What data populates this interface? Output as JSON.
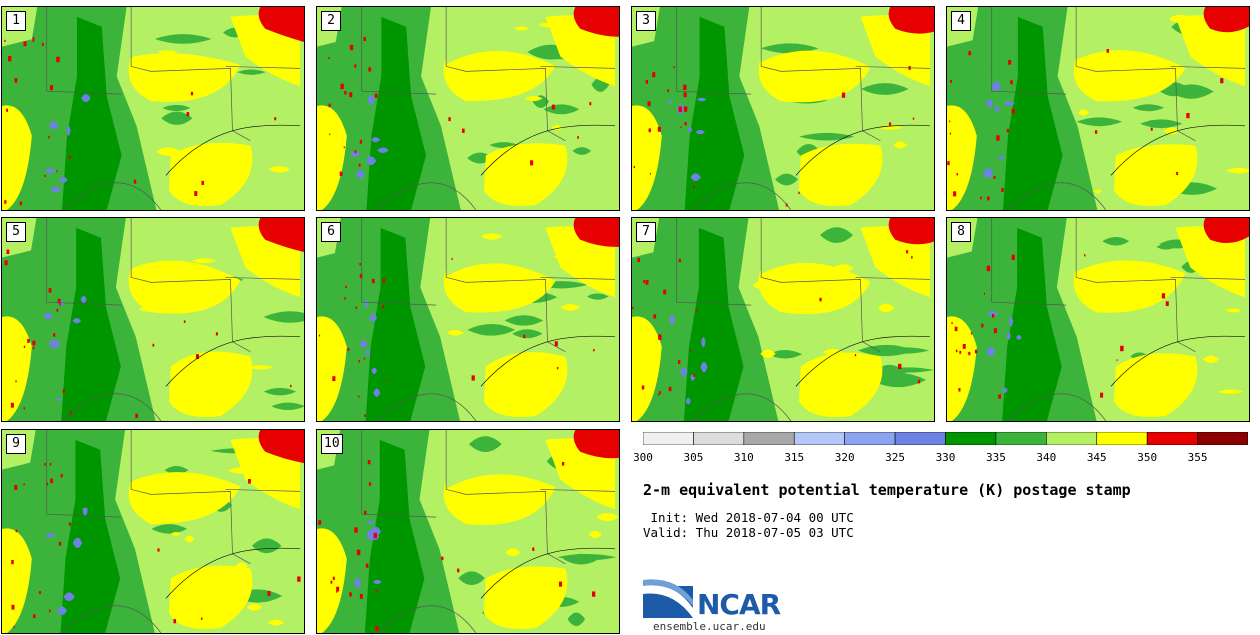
{
  "panels": [
    {
      "label": "1"
    },
    {
      "label": "2"
    },
    {
      "label": "3"
    },
    {
      "label": "4"
    },
    {
      "label": "5"
    },
    {
      "label": "6"
    },
    {
      "label": "7"
    },
    {
      "label": "8"
    },
    {
      "label": "9"
    },
    {
      "label": "10"
    }
  ],
  "colorbar": {
    "colors": [
      "#f0f0f0",
      "#dcdcdc",
      "#a8a8a8",
      "#b4c8f8",
      "#8ca4f0",
      "#6e82e6",
      "#009600",
      "#3cb43c",
      "#b4f064",
      "#ffff00",
      "#e60000",
      "#8c0000"
    ],
    "labels": [
      "300",
      "305",
      "310",
      "315",
      "320",
      "325",
      "330",
      "335",
      "340",
      "345",
      "350",
      "355"
    ]
  },
  "title": "2-m equivalent potential temperature (K) postage stamp",
  "init": " Init: Wed 2018-07-04 00 UTC",
  "valid": "Valid: Thu 2018-07-05 03 UTC",
  "logo_text": "NCAR",
  "url": "ensemble.ucar.edu"
}
